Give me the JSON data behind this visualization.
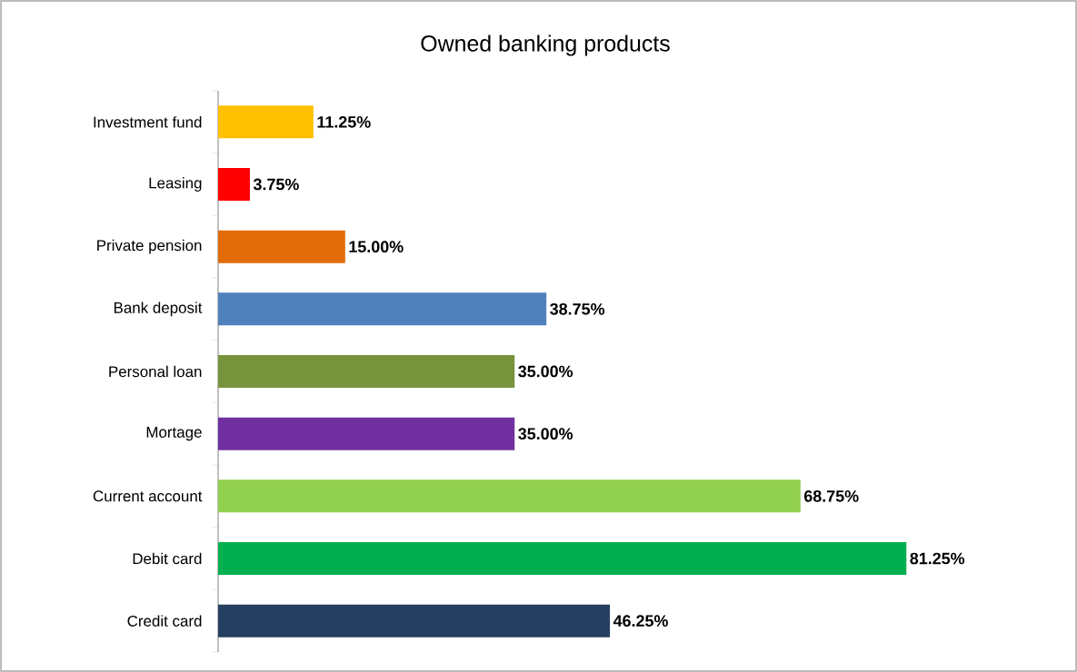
{
  "chart_data": {
    "type": "bar",
    "orientation": "horizontal",
    "title": "Owned banking products",
    "categories": [
      "Investment fund",
      "Leasing",
      "Private pension",
      "Bank deposit",
      "Personal loan",
      "Mortage",
      "Current account",
      "Debit card",
      "Credit card"
    ],
    "values": [
      11.25,
      3.75,
      15.0,
      38.75,
      35.0,
      35.0,
      68.75,
      81.25,
      46.25
    ],
    "value_labels": [
      "11.25%",
      "3.75%",
      "15.00%",
      "38.75%",
      "35.00%",
      "35.00%",
      "68.75%",
      "81.25%",
      "46.25%"
    ],
    "colors": [
      "#ffc000",
      "#ff0000",
      "#e36c09",
      "#4f81bd",
      "#77933c",
      "#7030a0",
      "#92d050",
      "#00b050",
      "#243f60"
    ]
  }
}
